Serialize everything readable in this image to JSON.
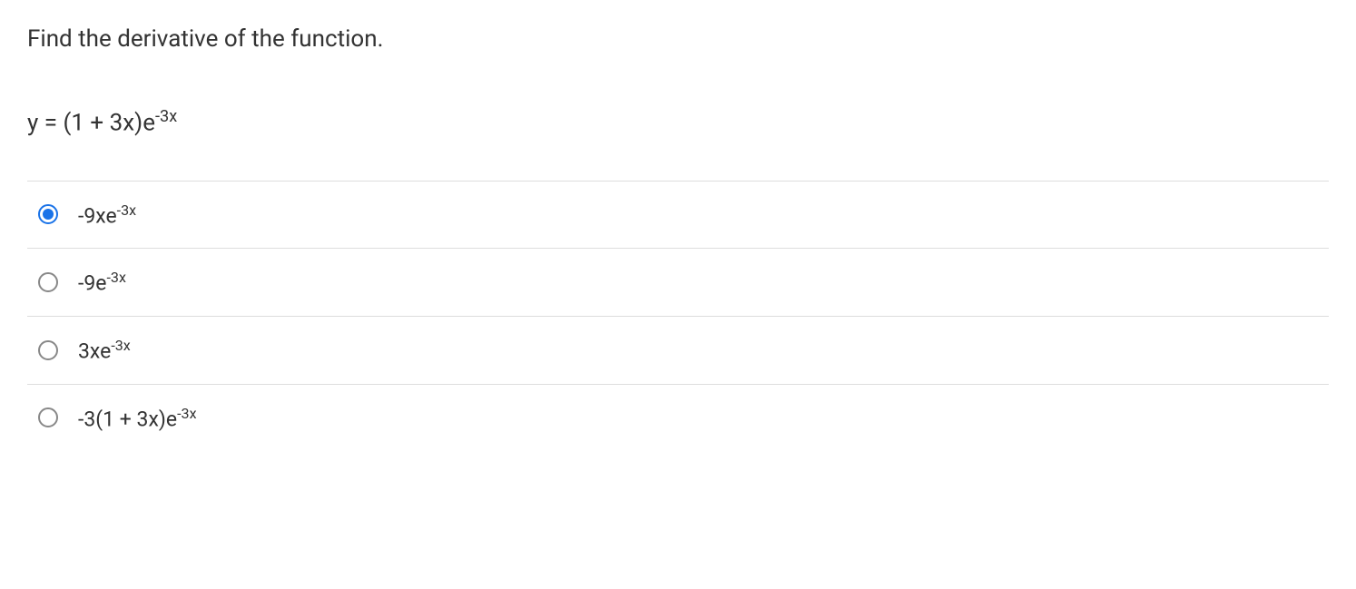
{
  "question": {
    "prompt": "Find the derivative of the function.",
    "equation_base": "y = (1 + 3x)e",
    "equation_exp": "-3x"
  },
  "options": [
    {
      "base": "-9xe",
      "exp": "-3x",
      "selected": true
    },
    {
      "base": "-9e",
      "exp": "-3x",
      "selected": false
    },
    {
      "base": "3xe",
      "exp": "-3x",
      "selected": false
    },
    {
      "base": "-3(1 + 3x)e",
      "exp": "-3x",
      "selected": false
    }
  ],
  "styles": {
    "text_color": "#333333",
    "border_color": "#dddddd",
    "radio_unselected_border": "#888888",
    "radio_selected_color": "#1a73e8",
    "background_color": "#ffffff",
    "question_fontsize": 26,
    "option_fontsize": 23
  }
}
